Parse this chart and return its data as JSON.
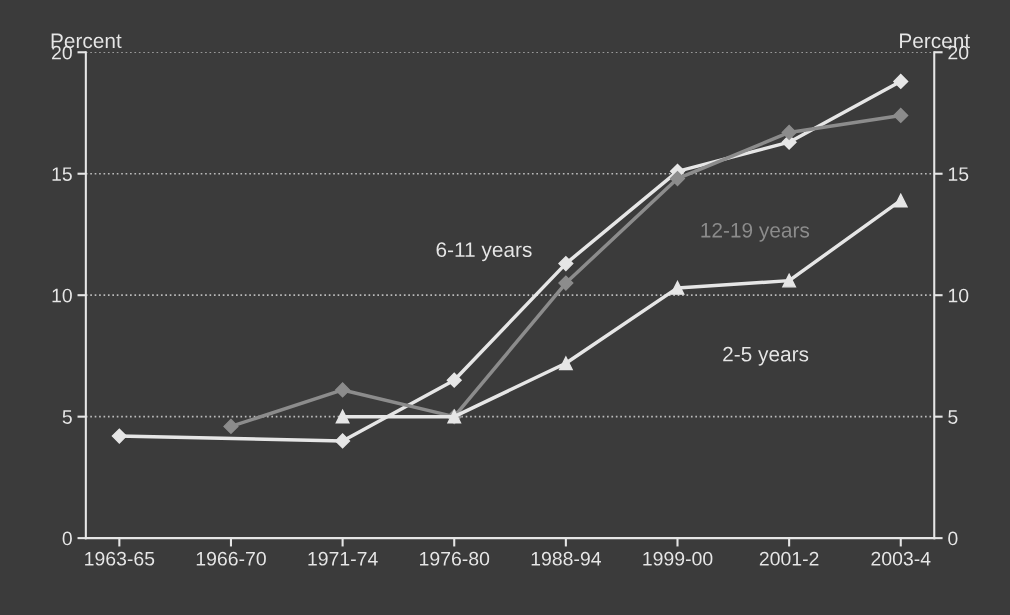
{
  "chart_data": {
    "type": "line",
    "ylabel": "Percent",
    "y2label": "Percent",
    "categories": [
      "1963-65",
      "1966-70",
      "1971-74",
      "1976-80",
      "1988-94",
      "1999-00",
      "2001-2",
      "2003-4"
    ],
    "ylim": [
      0,
      20
    ],
    "yticks": [
      0,
      5,
      10,
      15,
      20
    ],
    "y2lim": [
      0,
      20
    ],
    "y2ticks": [
      0,
      5,
      10,
      15,
      20
    ],
    "grid": "y",
    "legend": false,
    "series": [
      {
        "name": "6-11 years",
        "color": "#e6e6e6",
        "marker": "diamond",
        "values": [
          4.2,
          null,
          4.0,
          6.5,
          11.3,
          15.1,
          16.3,
          18.8
        ]
      },
      {
        "name": "12-19 years",
        "color": "#8c8c8c",
        "marker": "diamond",
        "values": [
          null,
          4.6,
          6.1,
          5.0,
          10.5,
          14.8,
          16.7,
          17.4
        ]
      },
      {
        "name": "2-5 years",
        "color": "#e6e6e6",
        "marker": "triangle",
        "values": [
          null,
          null,
          5.0,
          5.0,
          7.2,
          10.3,
          10.6,
          13.9
        ]
      }
    ]
  }
}
